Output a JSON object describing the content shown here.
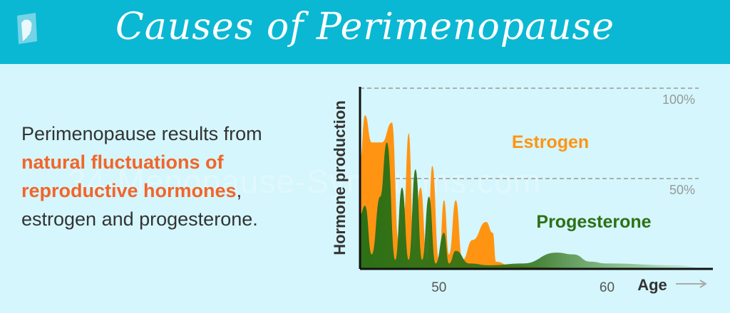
{
  "header": {
    "title": "Causes of Perimenopause",
    "logo_icon": "woman-profile-icon"
  },
  "description": {
    "line1": "Perimenopause results from",
    "highlight": "natural fluctuations of reproductive hormones",
    "highlight_line1": "natural fluctuations of",
    "highlight_line2": "reproductive hormones",
    "comma": ",",
    "line4": "estrogen and progesterone."
  },
  "watermark": "34-Menopause-Symptoms.com",
  "colors": {
    "header_bg": "#0ab8d4",
    "page_bg": "#d4f6fc",
    "estrogen": "#ff9413",
    "progesterone": "#2d7016",
    "highlight": "#f2652a"
  },
  "chart_data": {
    "type": "area",
    "xlabel": "Age",
    "ylabel": "Hormone production",
    "x_ticks": [
      {
        "value": 50,
        "label": "50"
      },
      {
        "value": 60,
        "label": "60"
      }
    ],
    "reference_lines": [
      {
        "value": 100,
        "label": "100%"
      },
      {
        "value": 50,
        "label": "50%"
      }
    ],
    "xlim": [
      45.3,
      66.3
    ],
    "ylim": [
      0,
      100
    ],
    "series": [
      {
        "name": "Estrogen",
        "color": "#ff9413",
        "points": [
          [
            45.3,
            60
          ],
          [
            45.6,
            85
          ],
          [
            46.0,
            70
          ],
          [
            46.6,
            70
          ],
          [
            47.2,
            81
          ],
          [
            47.6,
            15
          ],
          [
            47.9,
            30
          ],
          [
            48.2,
            75
          ],
          [
            48.5,
            10
          ],
          [
            48.9,
            45
          ],
          [
            49.3,
            5
          ],
          [
            49.6,
            57
          ],
          [
            50.0,
            5
          ],
          [
            50.3,
            38
          ],
          [
            50.6,
            8
          ],
          [
            51.0,
            38
          ],
          [
            51.4,
            5
          ],
          [
            52.0,
            16
          ],
          [
            52.8,
            26
          ],
          [
            53.2,
            20
          ],
          [
            53.4,
            4
          ],
          [
            54.2,
            2
          ],
          [
            56.0,
            1
          ],
          [
            58.0,
            0.5
          ],
          [
            66.3,
            0
          ]
        ]
      },
      {
        "name": "Progesterone",
        "color": "#2d7016",
        "points": [
          [
            45.3,
            30
          ],
          [
            45.6,
            35
          ],
          [
            46.0,
            8
          ],
          [
            46.5,
            40
          ],
          [
            46.9,
            70
          ],
          [
            47.4,
            5
          ],
          [
            47.8,
            45
          ],
          [
            48.2,
            5
          ],
          [
            48.6,
            55
          ],
          [
            49.0,
            5
          ],
          [
            49.4,
            40
          ],
          [
            49.8,
            3
          ],
          [
            50.3,
            20
          ],
          [
            50.6,
            3
          ],
          [
            51.0,
            10
          ],
          [
            51.8,
            3
          ],
          [
            53.0,
            2
          ],
          [
            55.0,
            3
          ],
          [
            57.0,
            9
          ],
          [
            58.0,
            8
          ],
          [
            59.0,
            4
          ],
          [
            60.0,
            3
          ],
          [
            64.0,
            2
          ],
          [
            66.3,
            0
          ]
        ]
      }
    ]
  }
}
